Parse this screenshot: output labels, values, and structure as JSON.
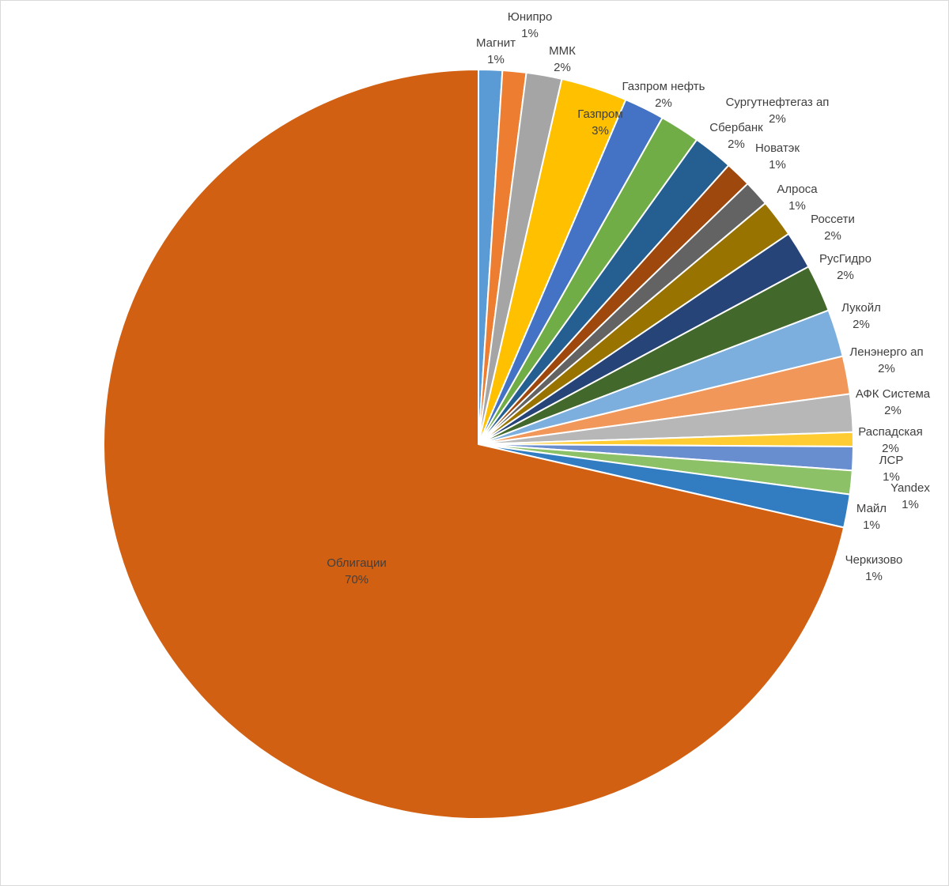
{
  "chart_data": {
    "type": "pie",
    "title": "",
    "start_angle_deg": 0,
    "direction": "clockwise",
    "slices": [
      {
        "label": "Магнит",
        "value": 1.0,
        "display": "1%",
        "color": "#5B9BD5"
      },
      {
        "label": "Юнипро",
        "value": 1.0,
        "display": "1%",
        "color": "#ED7D31"
      },
      {
        "label": "ММК",
        "value": 1.5,
        "display": "2%",
        "color": "#A5A5A5"
      },
      {
        "label": "Газпром",
        "value": 2.8,
        "display": "3%",
        "color": "#FFC000"
      },
      {
        "label": "Газпром нефть",
        "value": 1.7,
        "display": "2%",
        "color": "#4472C4"
      },
      {
        "label": "Сургутнефтегаз ап",
        "value": 1.7,
        "display": "2%",
        "color": "#70AD47"
      },
      {
        "label": "Сбербанк",
        "value": 1.7,
        "display": "2%",
        "color": "#255E91"
      },
      {
        "label": "Новатэк",
        "value": 1.1,
        "display": "1%",
        "color": "#9E480E"
      },
      {
        "label": "Алроса",
        "value": 1.1,
        "display": "1%",
        "color": "#636363"
      },
      {
        "label": "Россети",
        "value": 1.6,
        "display": "2%",
        "color": "#997300"
      },
      {
        "label": "РусГидро",
        "value": 1.6,
        "display": "2%",
        "color": "#264478"
      },
      {
        "label": "Лукойл",
        "value": 2.0,
        "display": "2%",
        "color": "#43682B"
      },
      {
        "label": "Ленэнерго ап",
        "value": 2.0,
        "display": "2%",
        "color": "#7CAFDD"
      },
      {
        "label": "АФК Система",
        "value": 1.6,
        "display": "2%",
        "color": "#F1975A"
      },
      {
        "label": "Распадская",
        "value": 1.6,
        "display": "2%",
        "color": "#B7B7B7"
      },
      {
        "label": "ЛСР",
        "value": 0.6,
        "display": "1%",
        "color": "#FFCD33"
      },
      {
        "label": "Yandex",
        "value": 1.0,
        "display": "1%",
        "color": "#698ED0"
      },
      {
        "label": "Майл",
        "value": 1.0,
        "display": "1%",
        "color": "#8CC168"
      },
      {
        "label": "Черкизово",
        "value": 1.4,
        "display": "1%",
        "color": "#327DC2"
      },
      {
        "label": "Облигации",
        "value": 70.0,
        "display": "70%",
        "color": "#D16012"
      }
    ]
  }
}
